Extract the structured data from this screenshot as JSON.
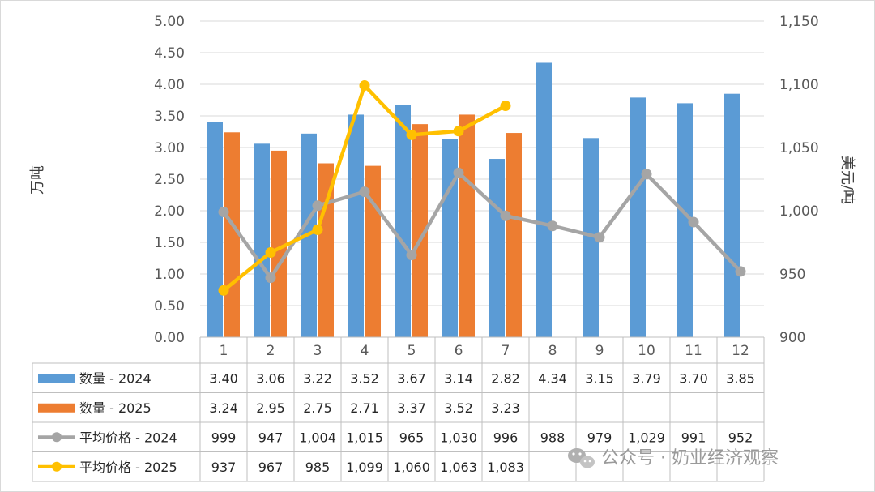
{
  "chart_data": {
    "type": "bar+line",
    "months": [
      "1",
      "2",
      "3",
      "4",
      "5",
      "6",
      "7",
      "8",
      "9",
      "10",
      "11",
      "12"
    ],
    "bar_series": [
      {
        "name": "数量 - 2024",
        "color": "#5b9bd5",
        "values": [
          3.4,
          3.06,
          3.22,
          3.52,
          3.67,
          3.14,
          2.82,
          4.34,
          3.15,
          3.79,
          3.7,
          3.85
        ],
        "labels": [
          "3.40",
          "3.06",
          "3.22",
          "3.52",
          "3.67",
          "3.14",
          "2.82",
          "4.34",
          "3.15",
          "3.79",
          "3.70",
          "3.85"
        ]
      },
      {
        "name": "数量 - 2025",
        "color": "#ed7d31",
        "values": [
          3.24,
          2.95,
          2.75,
          2.71,
          3.37,
          3.52,
          3.23
        ],
        "labels": [
          "3.24",
          "2.95",
          "2.75",
          "2.71",
          "3.37",
          "3.52",
          "3.23"
        ]
      }
    ],
    "line_series": [
      {
        "name": "平均价格 - 2024",
        "color": "#a5a5a5",
        "values": [
          999,
          947,
          1004,
          1015,
          965,
          1030,
          996,
          988,
          979,
          1029,
          991,
          952
        ],
        "labels": [
          "999",
          "947",
          "1,004",
          "1,015",
          "965",
          "1,030",
          "996",
          "988",
          "979",
          "1,029",
          "991",
          "952"
        ]
      },
      {
        "name": "平均价格 - 2025",
        "color": "#ffc000",
        "values": [
          937,
          967,
          985,
          1099,
          1060,
          1063,
          1083
        ],
        "labels": [
          "937",
          "967",
          "985",
          "1,099",
          "1,060",
          "1,063",
          "1,083"
        ]
      }
    ],
    "left_axis": {
      "label": "万吨",
      "min": 0,
      "max": 5,
      "ticks": [
        "0.00",
        "0.50",
        "1.00",
        "1.50",
        "2.00",
        "2.50",
        "3.00",
        "3.50",
        "4.00",
        "4.50",
        "5.00"
      ]
    },
    "right_axis": {
      "label": "美元/吨",
      "min": 900,
      "max": 1150,
      "ticks": [
        "900",
        "950",
        "1,000",
        "1,050",
        "1,100",
        "1,150"
      ]
    },
    "gridlines": true,
    "legend_placement": "data-table-left"
  },
  "watermark": {
    "text": "公众号 · 奶业经济观察",
    "icon": "wechat-icon"
  }
}
